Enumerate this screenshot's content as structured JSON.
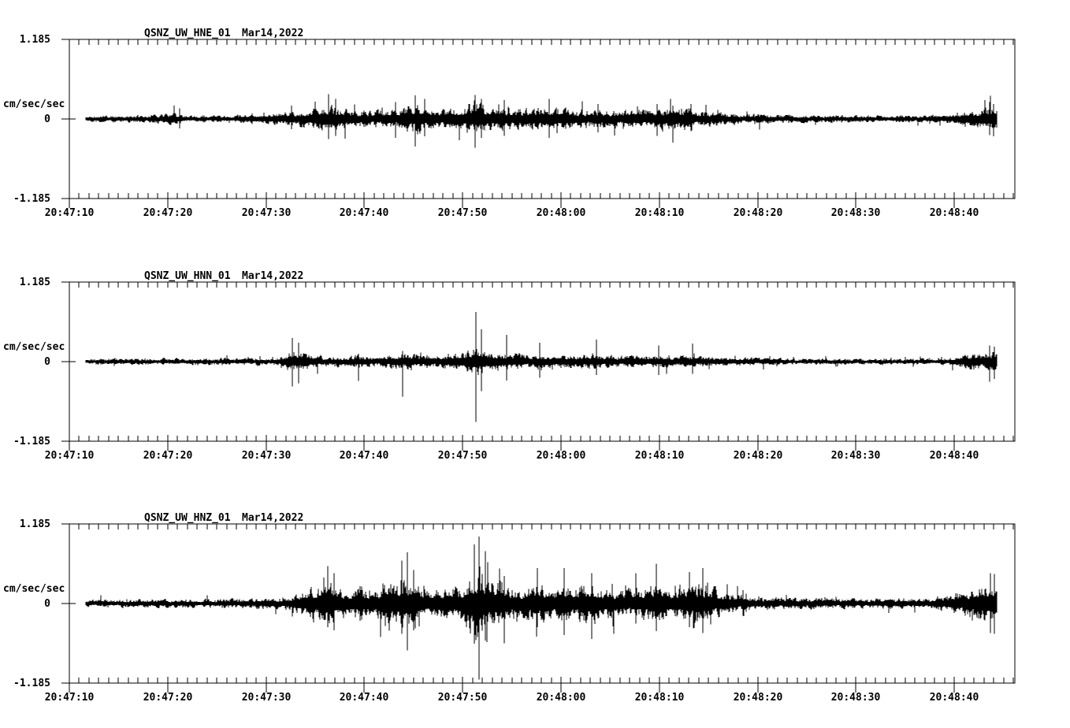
{
  "colors": {
    "background": "#ffffff",
    "foreground": "#000000"
  },
  "chart_data": {
    "type": "seismogram",
    "description": "Three-component strong-motion seismogram traces, station QSNZ (UW network), channels HNE/HNN/HNZ",
    "trace_start_s": 1.7,
    "trace_end_s": 94.3,
    "time_axis": {
      "start": "20:47:10",
      "end": "20:48:46",
      "major_tick_seconds": 10,
      "minor_tick_seconds": 1,
      "tick_labels": [
        "20:47:10",
        "20:47:20",
        "20:47:30",
        "20:47:40",
        "20:47:50",
        "20:48:00",
        "20:48:10",
        "20:48:20",
        "20:48:30",
        "20:48:40"
      ]
    },
    "amplitude_axis": {
      "max_label": "1.185",
      "zero_label": "0",
      "min_label": "-1.185",
      "units_label": "cm/sec/sec",
      "ylim": [
        -1.185,
        1.185
      ],
      "grid": false
    },
    "panels": [
      {
        "station": "QSNZ_UW_HNE_01",
        "date": "Mar14,2022",
        "envelope": [
          [
            1.7,
            0.04
          ],
          [
            8,
            0.05
          ],
          [
            10.5,
            0.08
          ],
          [
            12,
            0.05
          ],
          [
            17,
            0.05
          ],
          [
            21,
            0.09
          ],
          [
            23,
            0.1
          ],
          [
            25,
            0.13
          ],
          [
            26.5,
            0.19
          ],
          [
            28,
            0.14
          ],
          [
            30,
            0.11
          ],
          [
            32,
            0.13
          ],
          [
            34,
            0.15
          ],
          [
            35.4,
            0.21
          ],
          [
            36.5,
            0.15
          ],
          [
            38.5,
            0.13
          ],
          [
            40.3,
            0.19
          ],
          [
            41.4,
            0.24
          ],
          [
            42.5,
            0.17
          ],
          [
            44,
            0.16
          ],
          [
            45.5,
            0.13
          ],
          [
            47,
            0.14
          ],
          [
            48.7,
            0.17
          ],
          [
            50,
            0.14
          ],
          [
            52,
            0.12
          ],
          [
            54,
            0.13
          ],
          [
            56,
            0.11
          ],
          [
            58,
            0.13
          ],
          [
            60,
            0.14
          ],
          [
            61.5,
            0.17
          ],
          [
            63,
            0.13
          ],
          [
            65,
            0.1
          ],
          [
            67,
            0.08
          ],
          [
            69,
            0.07
          ],
          [
            71,
            0.06
          ],
          [
            74,
            0.05
          ],
          [
            78,
            0.05
          ],
          [
            83,
            0.05
          ],
          [
            87,
            0.05
          ],
          [
            89.5,
            0.07
          ],
          [
            91,
            0.11
          ],
          [
            92.5,
            0.13
          ],
          [
            93.7,
            0.16
          ],
          [
            94.3,
            0.16
          ]
        ],
        "spikes": [
          [
            11.2,
            0.16,
            0.14
          ],
          [
            22.6,
            0.2,
            0.15
          ],
          [
            26.4,
            0.37,
            0.3
          ],
          [
            27.1,
            0.3,
            0.25
          ],
          [
            33.2,
            0.25,
            0.28
          ],
          [
            35.2,
            0.35,
            0.41
          ],
          [
            36.1,
            0.3,
            0.26
          ],
          [
            41.3,
            0.36,
            0.43
          ],
          [
            41.9,
            0.3,
            0.28
          ],
          [
            44.2,
            0.28,
            0.25
          ],
          [
            48.8,
            0.3,
            0.28
          ],
          [
            53.8,
            0.22,
            0.2
          ],
          [
            59.8,
            0.22,
            0.25
          ],
          [
            61.4,
            0.2,
            0.35
          ],
          [
            63.2,
            0.22,
            0.18
          ],
          [
            93.6,
            0.25,
            0.24
          ],
          [
            94.0,
            0.22,
            0.26
          ]
        ]
      },
      {
        "station": "QSNZ_UW_HNN_01",
        "date": "Mar14,2022",
        "envelope": [
          [
            1.7,
            0.04
          ],
          [
            8,
            0.04
          ],
          [
            13,
            0.05
          ],
          [
            18,
            0.05
          ],
          [
            21.5,
            0.06
          ],
          [
            22.8,
            0.16
          ],
          [
            24,
            0.11
          ],
          [
            26,
            0.07
          ],
          [
            28,
            0.07
          ],
          [
            29.5,
            0.09
          ],
          [
            31,
            0.07
          ],
          [
            33,
            0.1
          ],
          [
            34.5,
            0.12
          ],
          [
            36,
            0.09
          ],
          [
            38,
            0.09
          ],
          [
            40,
            0.14
          ],
          [
            41.4,
            0.22
          ],
          [
            42.5,
            0.15
          ],
          [
            44,
            0.12
          ],
          [
            46,
            0.1
          ],
          [
            48,
            0.09
          ],
          [
            50,
            0.1
          ],
          [
            52,
            0.09
          ],
          [
            54,
            0.1
          ],
          [
            56,
            0.08
          ],
          [
            58,
            0.09
          ],
          [
            60,
            0.09
          ],
          [
            62,
            0.08
          ],
          [
            64,
            0.08
          ],
          [
            66,
            0.06
          ],
          [
            68,
            0.06
          ],
          [
            70,
            0.05
          ],
          [
            74,
            0.04
          ],
          [
            80,
            0.04
          ],
          [
            86,
            0.04
          ],
          [
            89.5,
            0.05
          ],
          [
            91,
            0.09
          ],
          [
            93,
            0.12
          ],
          [
            94.3,
            0.13
          ]
        ],
        "spikes": [
          [
            22.7,
            0.35,
            0.37
          ],
          [
            23.3,
            0.28,
            0.32
          ],
          [
            29.4,
            0.12,
            0.29
          ],
          [
            33.9,
            0.16,
            0.52
          ],
          [
            41.35,
            0.74,
            0.9
          ],
          [
            41.9,
            0.48,
            0.44
          ],
          [
            44.5,
            0.4,
            0.28
          ],
          [
            47.8,
            0.28,
            0.24
          ],
          [
            53.6,
            0.33,
            0.2
          ],
          [
            59.9,
            0.24,
            0.2
          ],
          [
            63.4,
            0.27,
            0.18
          ],
          [
            93.6,
            0.24,
            0.3
          ],
          [
            94.1,
            0.22,
            0.26
          ]
        ]
      },
      {
        "station": "QSNZ_UW_HNZ_01",
        "date": "Mar14,2022",
        "envelope": [
          [
            1.7,
            0.05
          ],
          [
            8,
            0.06
          ],
          [
            14,
            0.06
          ],
          [
            19,
            0.07
          ],
          [
            22,
            0.09
          ],
          [
            23.5,
            0.17
          ],
          [
            25,
            0.24
          ],
          [
            26.4,
            0.31
          ],
          [
            28,
            0.2
          ],
          [
            29.6,
            0.22
          ],
          [
            31,
            0.16
          ],
          [
            32.5,
            0.27
          ],
          [
            34,
            0.38
          ],
          [
            35.5,
            0.27
          ],
          [
            37,
            0.2
          ],
          [
            38.5,
            0.2
          ],
          [
            40,
            0.26
          ],
          [
            41,
            0.42
          ],
          [
            41.8,
            0.5
          ],
          [
            43,
            0.31
          ],
          [
            44.2,
            0.28
          ],
          [
            45.5,
            0.2
          ],
          [
            47.5,
            0.26
          ],
          [
            49,
            0.22
          ],
          [
            50.3,
            0.28
          ],
          [
            51.7,
            0.24
          ],
          [
            53,
            0.28
          ],
          [
            54.5,
            0.2
          ],
          [
            56,
            0.17
          ],
          [
            57.5,
            0.2
          ],
          [
            59.5,
            0.28
          ],
          [
            61,
            0.22
          ],
          [
            62.5,
            0.25
          ],
          [
            64,
            0.28
          ],
          [
            65.5,
            0.21
          ],
          [
            67,
            0.15
          ],
          [
            68.5,
            0.13
          ],
          [
            70,
            0.09
          ],
          [
            72,
            0.08
          ],
          [
            76,
            0.07
          ],
          [
            80,
            0.07
          ],
          [
            84,
            0.07
          ],
          [
            87.5,
            0.08
          ],
          [
            89.5,
            0.12
          ],
          [
            91,
            0.18
          ],
          [
            92.5,
            0.24
          ],
          [
            93.7,
            0.29
          ],
          [
            94.3,
            0.29
          ]
        ],
        "spikes": [
          [
            26.3,
            0.56,
            0.35
          ],
          [
            26.9,
            0.45,
            0.4
          ],
          [
            29.6,
            0.26,
            0.26
          ],
          [
            33.8,
            0.64,
            0.45
          ],
          [
            34.4,
            0.76,
            0.7
          ],
          [
            35.0,
            0.5,
            0.4
          ],
          [
            41.2,
            0.88,
            0.6
          ],
          [
            41.7,
            1.0,
            1.13
          ],
          [
            42.3,
            0.78,
            0.55
          ],
          [
            44.2,
            0.41,
            0.59
          ],
          [
            47.6,
            0.53,
            0.35
          ],
          [
            50.3,
            0.53,
            0.47
          ],
          [
            53.1,
            0.45,
            0.53
          ],
          [
            57.6,
            0.45,
            0.3
          ],
          [
            59.7,
            0.59,
            0.41
          ],
          [
            63.1,
            0.47,
            0.35
          ],
          [
            64.4,
            0.53,
            0.3
          ],
          [
            68.5,
            0.2,
            0.18
          ],
          [
            93.7,
            0.45,
            0.44
          ],
          [
            94.1,
            0.44,
            0.45
          ]
        ]
      }
    ]
  }
}
